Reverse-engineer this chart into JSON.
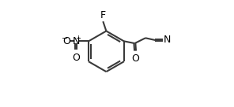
{
  "bg_color": "#ffffff",
  "bond_color": "#3a3a3a",
  "text_color": "#000000",
  "line_width": 1.5,
  "font_size": 9.0,
  "figsize": [
    2.96,
    1.36
  ],
  "dpi": 100,
  "xlim": [
    0.0,
    1.0
  ],
  "ylim": [
    0.0,
    1.0
  ]
}
